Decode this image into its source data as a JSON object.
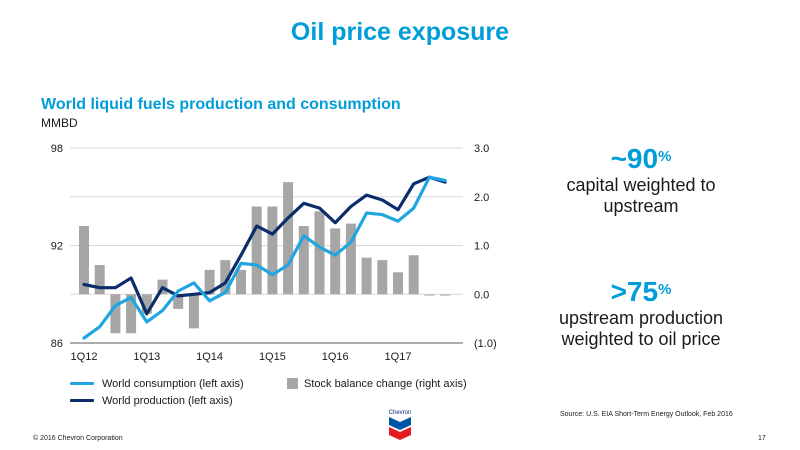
{
  "page": {
    "title": "Oil price exposure",
    "page_number": "17"
  },
  "footer": {
    "copyright": "© 2016 Chevron Corporation",
    "source": "Source:  U.S. EIA Short-Term Energy Outlook, Feb 2016"
  },
  "logo": {
    "text": "Chevron"
  },
  "colors": {
    "accent": "#009dd9",
    "consumption": "#1fa5e0",
    "production": "#0b2d6b",
    "stock": "#a6a6a6",
    "forecast_stock": "#bdbdbd"
  },
  "stats": [
    {
      "prefix": "~",
      "value": "90",
      "sup": "%",
      "line1": "capital weighted to",
      "line2": "upstream"
    },
    {
      "prefix": ">",
      "value": "75",
      "sup": "%",
      "line1": "upstream production",
      "line2": "weighted to oil price"
    }
  ],
  "chart_data": {
    "type": "line",
    "title": "World liquid fuels production and consumption",
    "unit": "MMBD",
    "categories": [
      "1Q12",
      "2Q12",
      "3Q12",
      "4Q12",
      "1Q13",
      "2Q13",
      "3Q13",
      "4Q13",
      "1Q14",
      "2Q14",
      "3Q14",
      "4Q14",
      "1Q15",
      "2Q15",
      "3Q15",
      "4Q15",
      "1Q16",
      "2Q16",
      "3Q16",
      "4Q16",
      "1Q17",
      "2Q17",
      "3Q17",
      "4Q17"
    ],
    "x_tick_labels": [
      "1Q12",
      "1Q13",
      "1Q14",
      "1Q15",
      "1Q16",
      "1Q17"
    ],
    "left_axis": {
      "ylim": [
        86,
        98
      ],
      "ticks": [
        "86",
        "92",
        "98"
      ],
      "tick_values": [
        86,
        92,
        98
      ]
    },
    "right_axis": {
      "ylim": [
        -1.0,
        3.0
      ],
      "ticks": [
        "(1.0)",
        "0.0",
        "1.0",
        "2.0",
        "3.0"
      ],
      "tick_values": [
        -1,
        0,
        1,
        2,
        3
      ]
    },
    "series": [
      {
        "name": "World consumption (left axis)",
        "axis": "left",
        "kind": "line",
        "values": [
          86.3,
          87.0,
          88.3,
          88.8,
          87.3,
          88.0,
          89.2,
          89.7,
          88.6,
          89.1,
          90.9,
          90.8,
          90.2,
          90.8,
          92.6,
          91.9,
          91.4,
          92.2,
          94.0,
          93.9,
          93.5,
          94.3,
          96.2,
          96.0
        ]
      },
      {
        "name": "World production (left axis)",
        "axis": "left",
        "kind": "line",
        "values": [
          89.6,
          89.4,
          89.4,
          90.0,
          87.8,
          89.4,
          88.9,
          89.0,
          89.1,
          89.7,
          91.4,
          93.2,
          92.7,
          93.7,
          94.6,
          94.3,
          93.4,
          94.4,
          95.1,
          94.8,
          94.2,
          95.8,
          96.2,
          95.9
        ]
      },
      {
        "name": "Stock balance change (right axis)",
        "axis": "right",
        "kind": "bar",
        "values": [
          1.4,
          0.6,
          -0.8,
          -0.8,
          -0.4,
          0.3,
          -0.3,
          -0.7,
          0.5,
          0.7,
          0.5,
          1.8,
          1.8,
          2.3,
          1.4,
          1.7,
          1.35,
          1.45,
          0.75,
          0.7,
          0.45,
          0.8,
          -0.03,
          -0.03
        ]
      }
    ],
    "legend": {
      "position": "bottom"
    }
  }
}
